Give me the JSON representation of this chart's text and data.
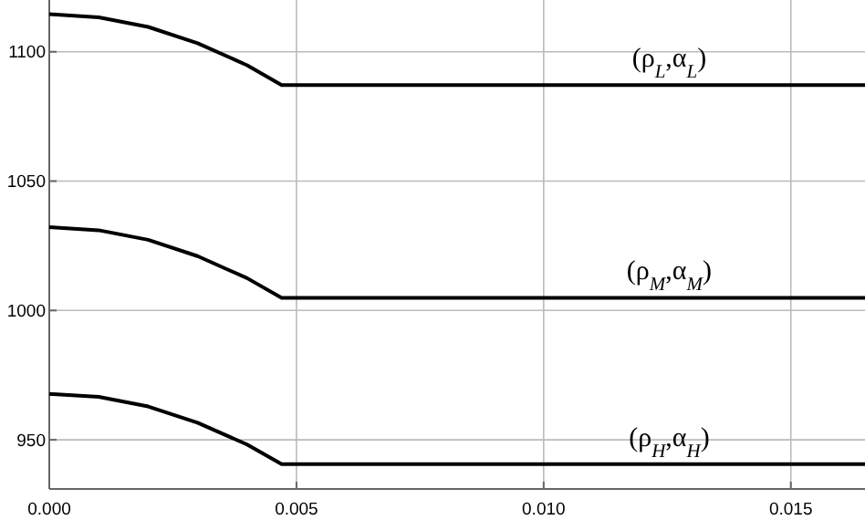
{
  "chart_data": {
    "type": "line",
    "xlim": [
      0,
      0.0165
    ],
    "ylim": [
      931,
      1120
    ],
    "xticks": [
      {
        "value": 0,
        "label": "0.000"
      },
      {
        "value": 0.005,
        "label": "0.005"
      },
      {
        "value": 0.01,
        "label": "0.010"
      },
      {
        "value": 0.015,
        "label": "0.015"
      }
    ],
    "yticks": [
      950,
      1000,
      1050,
      1100
    ],
    "grid": true,
    "line_style": "solid",
    "marker": "none",
    "series": [
      {
        "color": "#000000",
        "x": [
          0,
          0.001,
          0.002,
          0.003,
          0.004,
          0.0047,
          0.0165
        ],
        "values": [
          1114.5,
          1113.3,
          1109.6,
          1103.3,
          1094.8,
          1087.1,
          1087.1
        ]
      },
      {
        "color": "#000000",
        "x": [
          0,
          0.001,
          0.002,
          0.003,
          0.004,
          0.0047,
          0.0165
        ],
        "values": [
          1032.2,
          1031,
          1027.3,
          1021,
          1012.5,
          1004.9,
          1004.9
        ]
      },
      {
        "color": "#000000",
        "x": [
          0,
          0.001,
          0.002,
          0.003,
          0.004,
          0.0047,
          0.0165
        ],
        "values": [
          967.8,
          966.6,
          962.9,
          956.6,
          948.2,
          940.6,
          940.6
        ]
      }
    ],
    "annotations": [
      {
        "text": "(ρ$_{L}$,α$_{L}$)",
        "y": 1087.1
      },
      {
        "text": "(ρ$_{M}$,α$_{M}$)",
        "y": 1004.9
      },
      {
        "text": "(ρ$_{H}$,α$_{H}$)",
        "y": 940.6
      }
    ]
  }
}
